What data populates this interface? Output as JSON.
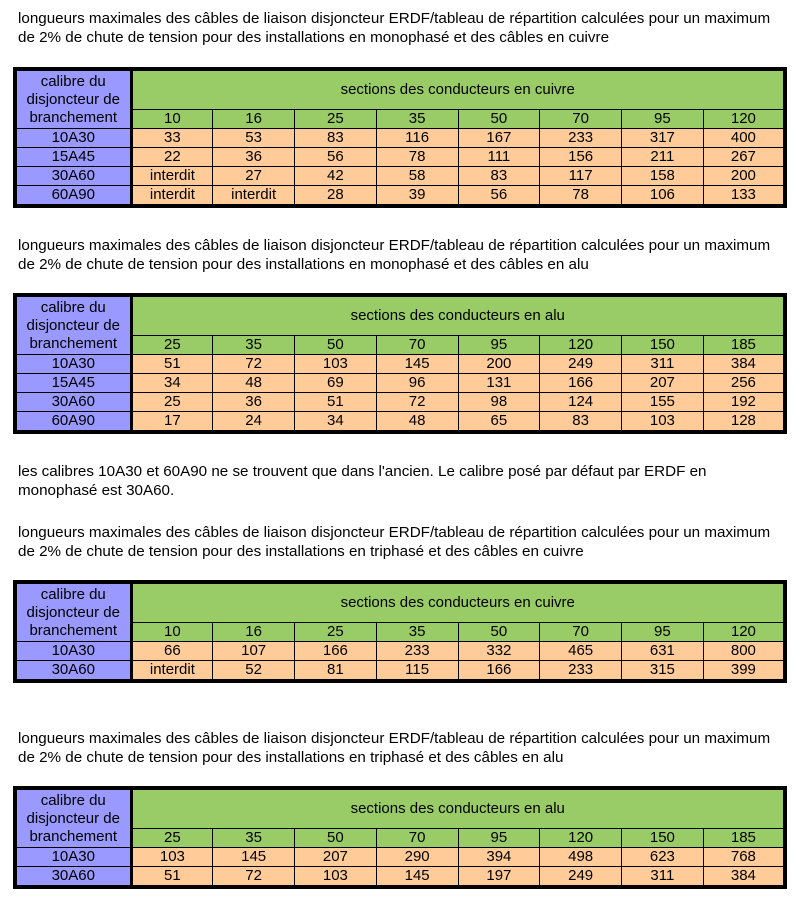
{
  "doc": {
    "t1": {
      "intro": "longueurs maximales des câbles de liaison disjoncteur ERDF/tableau de répartition calculées pour un maximum de 2% de chute de tension pour des installations en monophasé et des câbles en cuivre",
      "corner": "calibre du disjoncteur de branchement",
      "header": "sections des conducteurs en cuivre",
      "sections": [
        "10",
        "16",
        "25",
        "35",
        "50",
        "70",
        "95",
        "120"
      ],
      "rows": [
        {
          "label": "10A30",
          "values": [
            "33",
            "53",
            "83",
            "116",
            "167",
            "233",
            "317",
            "400"
          ]
        },
        {
          "label": "15A45",
          "values": [
            "22",
            "36",
            "56",
            "78",
            "111",
            "156",
            "211",
            "267"
          ]
        },
        {
          "label": "30A60",
          "values": [
            "interdit",
            "27",
            "42",
            "58",
            "83",
            "117",
            "158",
            "200"
          ]
        },
        {
          "label": "60A90",
          "values": [
            "interdit",
            "interdit",
            "28",
            "39",
            "56",
            "78",
            "106",
            "133"
          ]
        }
      ]
    },
    "t2": {
      "intro": "longueurs maximales des câbles de liaison disjoncteur ERDF/tableau de répartition calculées pour un maximum de 2% de chute de tension pour des installations en monophasé et des câbles en alu",
      "corner": "calibre du disjoncteur de branchement",
      "header": "sections des conducteurs en alu",
      "sections": [
        "25",
        "35",
        "50",
        "70",
        "95",
        "120",
        "150",
        "185"
      ],
      "rows": [
        {
          "label": "10A30",
          "values": [
            "51",
            "72",
            "103",
            "145",
            "200",
            "249",
            "311",
            "384"
          ]
        },
        {
          "label": "15A45",
          "values": [
            "34",
            "48",
            "69",
            "96",
            "131",
            "166",
            "207",
            "256"
          ]
        },
        {
          "label": "30A60",
          "values": [
            "25",
            "36",
            "51",
            "72",
            "98",
            "124",
            "155",
            "192"
          ]
        },
        {
          "label": "60A90",
          "values": [
            "17",
            "24",
            "34",
            "48",
            "65",
            "83",
            "103",
            "128"
          ]
        }
      ]
    },
    "note": "les calibres 10A30 et 60A90 ne se trouvent que dans l'ancien. Le calibre posé par défaut par ERDF en monophasé est 30A60.",
    "t3": {
      "intro": "longueurs maximales des câbles de liaison disjoncteur ERDF/tableau de répartition calculées pour un maximum de 2% de chute de tension pour des installations en triphasé et des câbles en cuivre",
      "corner": "calibre du disjoncteur de branchement",
      "header": "sections des conducteurs en cuivre",
      "sections": [
        "10",
        "16",
        "25",
        "35",
        "50",
        "70",
        "95",
        "120"
      ],
      "rows": [
        {
          "label": "10A30",
          "values": [
            "66",
            "107",
            "166",
            "233",
            "332",
            "465",
            "631",
            "800"
          ]
        },
        {
          "label": "30A60",
          "values": [
            "interdit",
            "52",
            "81",
            "115",
            "166",
            "233",
            "315",
            "399"
          ]
        }
      ]
    },
    "t4": {
      "intro": "longueurs maximales des câbles de liaison disjoncteur ERDF/tableau de répartition calculées pour un maximum de 2% de chute de tension pour des installations en triphasé et des câbles en alu",
      "corner": "calibre du disjoncteur de branchement",
      "header": "sections des conducteurs en alu",
      "sections": [
        "25",
        "35",
        "50",
        "70",
        "95",
        "120",
        "150",
        "185"
      ],
      "rows": [
        {
          "label": "10A30",
          "values": [
            "103",
            "145",
            "207",
            "290",
            "394",
            "498",
            "623",
            "768"
          ]
        },
        {
          "label": "30A60",
          "values": [
            "51",
            "72",
            "103",
            "145",
            "197",
            "249",
            "311",
            "384"
          ]
        }
      ]
    },
    "colors": {
      "corner": "#9999ff",
      "header": "#99cc66",
      "values": "#ffcc99",
      "border": "#000000"
    }
  }
}
